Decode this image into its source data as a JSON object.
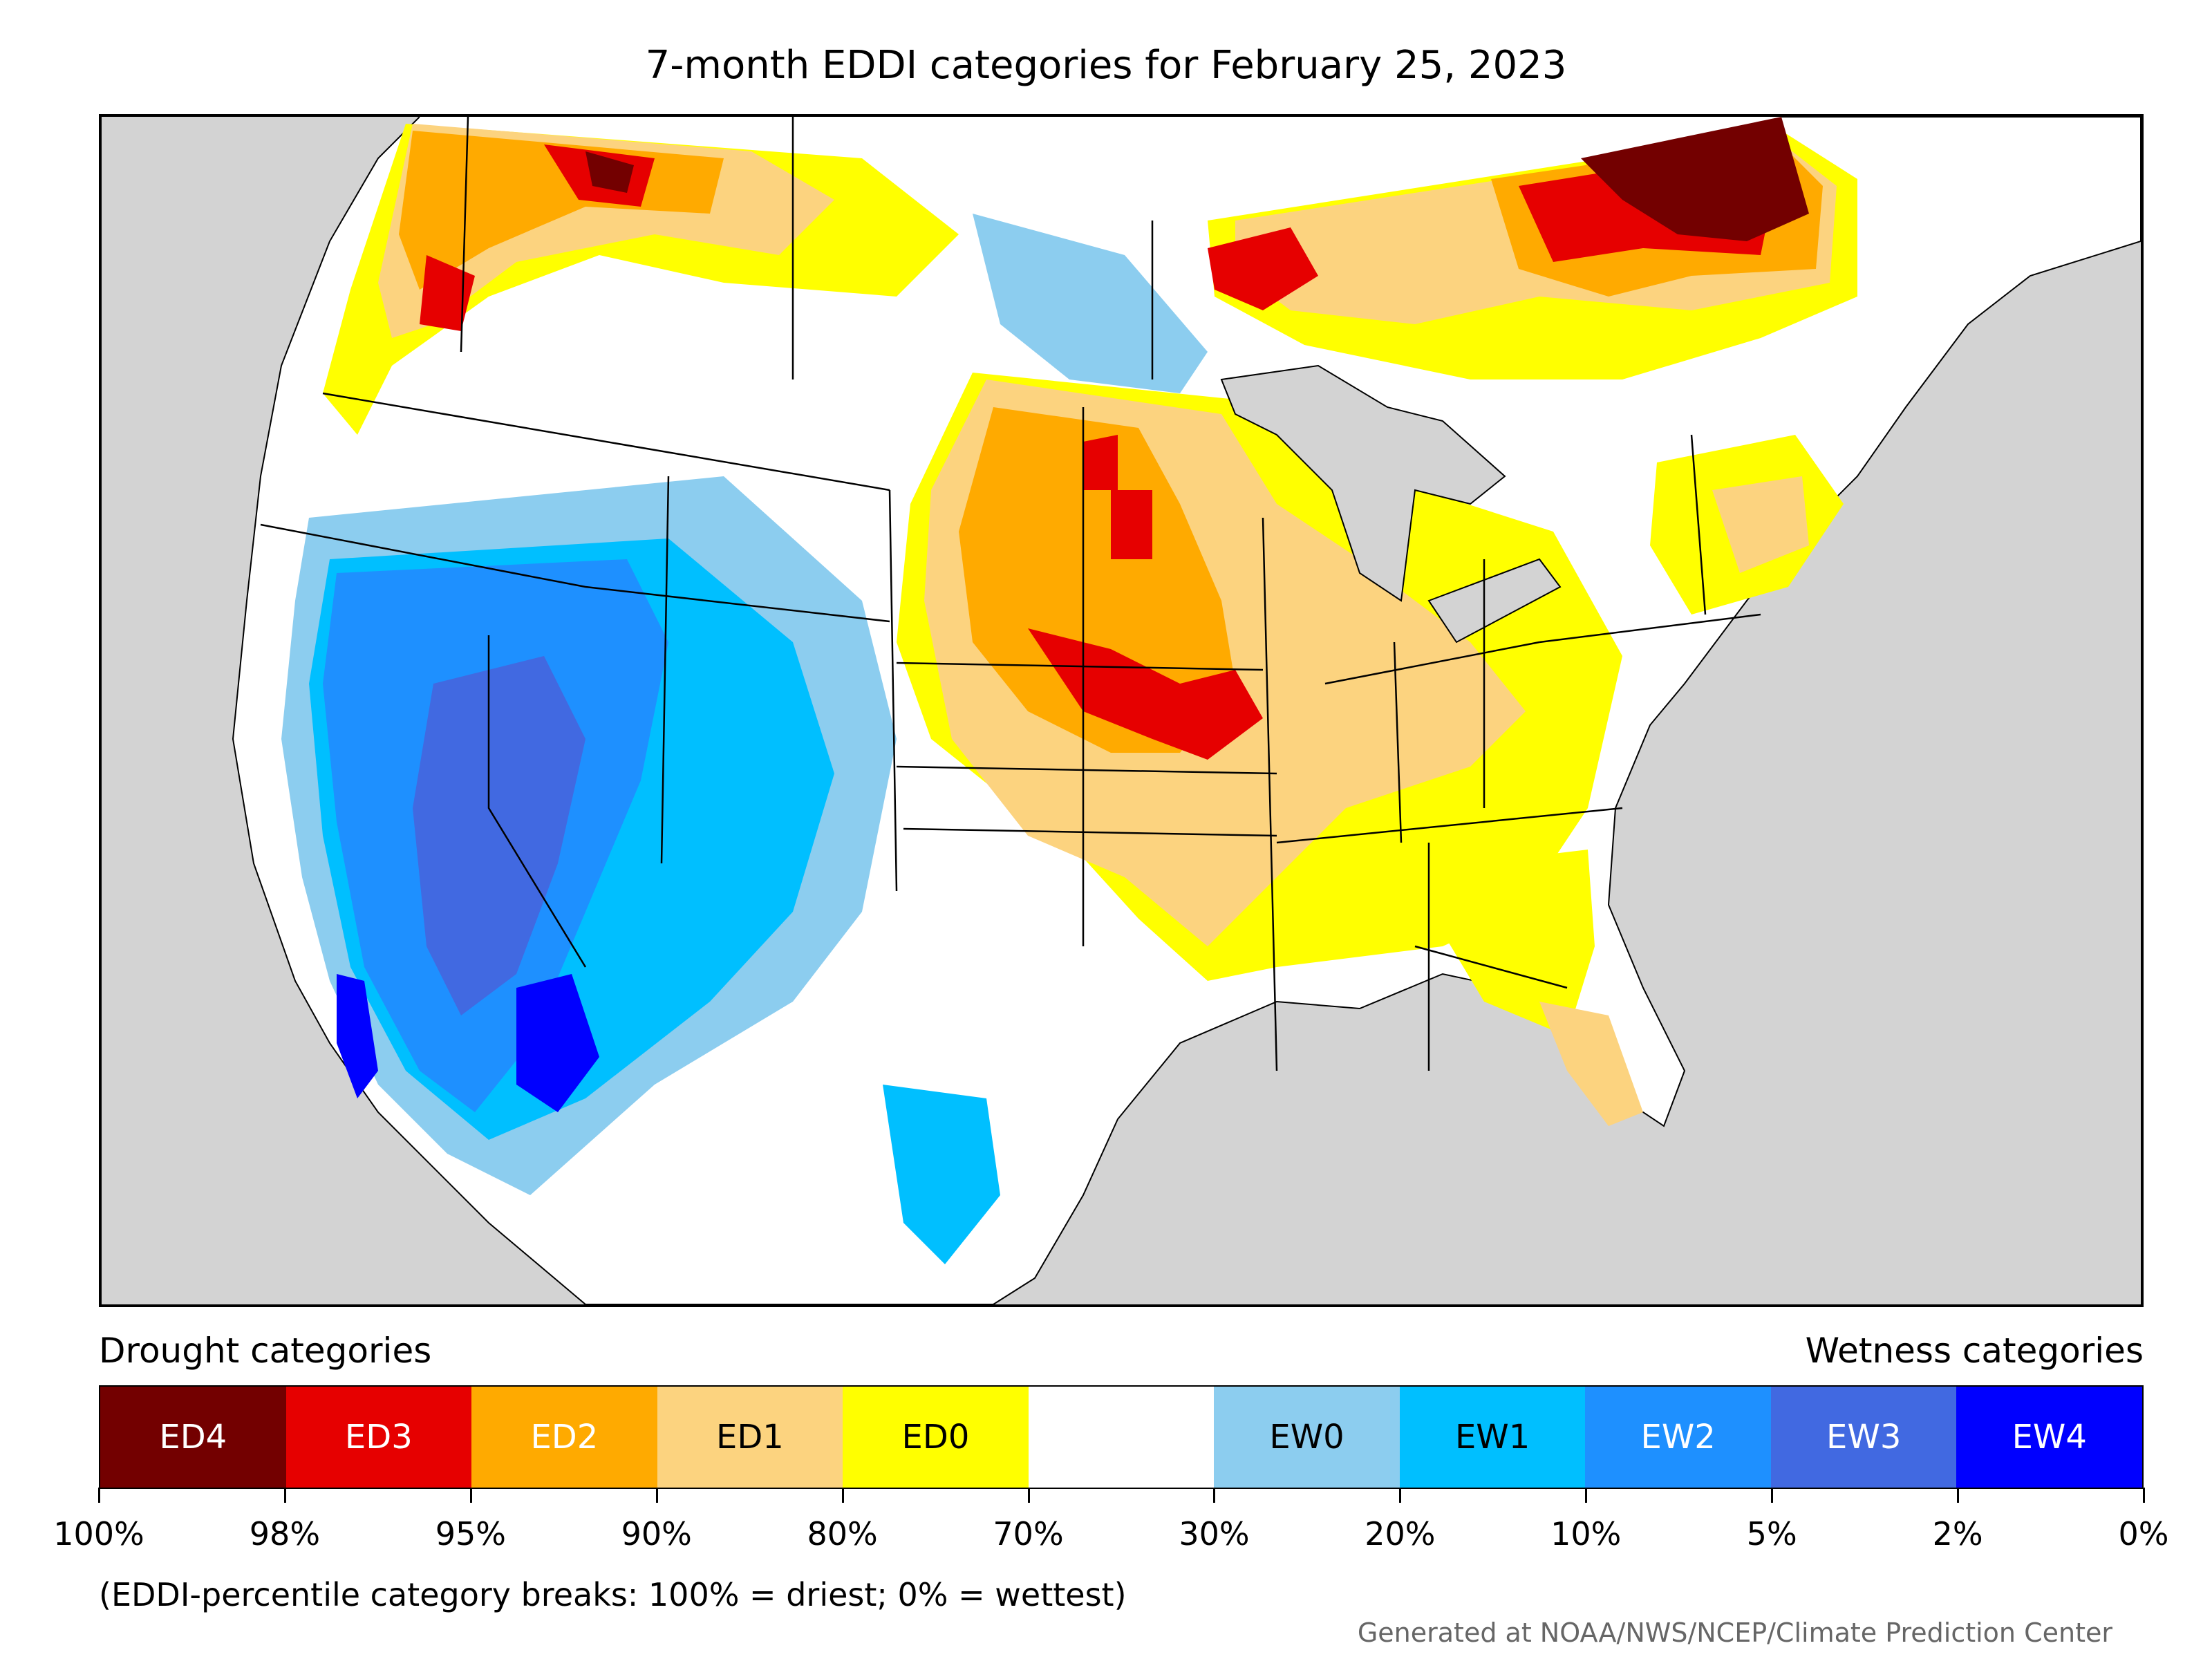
{
  "title": "7-month EDDI categories for February 25, 2023",
  "legend": {
    "drought_label": "Drought categories",
    "wetness_label": "Wetness categories",
    "categories": [
      {
        "label": "ED4",
        "color": "#730000",
        "text_color": "#ffffff"
      },
      {
        "label": "ED3",
        "color": "#e60000",
        "text_color": "#ffffff"
      },
      {
        "label": "ED2",
        "color": "#ffaa00",
        "text_color": "#ffffff"
      },
      {
        "label": "ED1",
        "color": "#fcd37f",
        "text_color": "#000000"
      },
      {
        "label": "ED0",
        "color": "#ffff00",
        "text_color": "#000000"
      },
      {
        "label": "",
        "color": "#ffffff",
        "text_color": "#000000"
      },
      {
        "label": "EW0",
        "color": "#8ccdef",
        "text_color": "#000000"
      },
      {
        "label": "EW1",
        "color": "#00bfff",
        "text_color": "#000000"
      },
      {
        "label": "EW2",
        "color": "#1e90ff",
        "text_color": "#ffffff"
      },
      {
        "label": "EW3",
        "color": "#4169e1",
        "text_color": "#ffffff"
      },
      {
        "label": "EW4",
        "color": "#0000ff",
        "text_color": "#ffffff"
      }
    ],
    "breaks": [
      "100%",
      "98%",
      "95%",
      "90%",
      "80%",
      "70%",
      "30%",
      "20%",
      "10%",
      "5%",
      "2%",
      "0%"
    ]
  },
  "footnote": "(EDDI-percentile category breaks: 100% = driest; 0% = wettest)",
  "credit": "Generated at NOAA/NWS/NCEP/Climate Prediction Center",
  "map": {
    "background_color": "#d3d3d3",
    "region": "Contiguous United States with southern Canada and northern Mexico"
  }
}
